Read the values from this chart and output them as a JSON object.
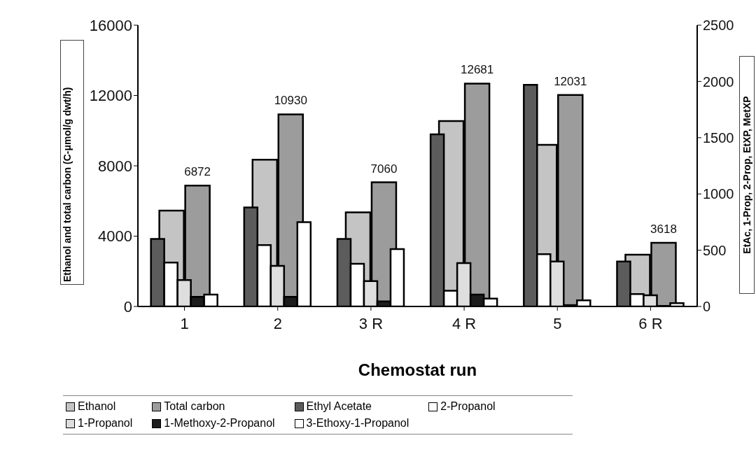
{
  "chart_data": {
    "type": "bar",
    "xlabel": "Chemostat run",
    "ylabel": "Ethanol and total carbon (C-μmol/g dwt/h)",
    "y2label": "EtAc, 1-Prop, 2-Prop, EtXP, MetXP",
    "categories": [
      "1",
      "2",
      "3 R",
      "4 R",
      "5",
      "6 R"
    ],
    "series": [
      {
        "name": "Ethanol",
        "color": "#c4c4c4",
        "values": [
          5450,
          8350,
          5350,
          10550,
          9190,
          2950
        ]
      },
      {
        "name": "Total carbon",
        "color": "#9c9c9c",
        "values": [
          6872,
          10930,
          7060,
          12681,
          12031,
          3618
        ],
        "value_labels": [
          "6872",
          "10930",
          "7060",
          "12681",
          "12031",
          "3618"
        ]
      },
      {
        "name": "Ethyl Acetate",
        "color": "#5c5c5c",
        "axis": "y2",
        "values": [
          600,
          880,
          600,
          1530,
          1970,
          400
        ]
      },
      {
        "name": "2-Propanol",
        "color": "#ffffff",
        "axis": "y2",
        "values": [
          390,
          545,
          380,
          140,
          465,
          110
        ]
      },
      {
        "name": "1-Propanol",
        "color": "#dedede",
        "axis": "y2",
        "values": [
          235,
          360,
          225,
          385,
          400,
          100
        ]
      },
      {
        "name": "1-Methoxy-2-Propanol",
        "color": "#1c1c1c",
        "axis": "y2",
        "values": [
          85,
          85,
          45,
          105,
          12,
          5
        ]
      },
      {
        "name": "3-Ethoxy-1-Propanol",
        "color": "#ffffff",
        "axis": "y2",
        "values": [
          105,
          750,
          510,
          70,
          55,
          30
        ]
      }
    ],
    "ylim": [
      0,
      16000
    ],
    "yticks": [
      0,
      4000,
      8000,
      12000,
      16000
    ],
    "y2lim": [
      0,
      2500
    ],
    "y2ticks": [
      0,
      500,
      1000,
      1500,
      2000,
      2500
    ],
    "grid": false,
    "legend": "bottom"
  }
}
